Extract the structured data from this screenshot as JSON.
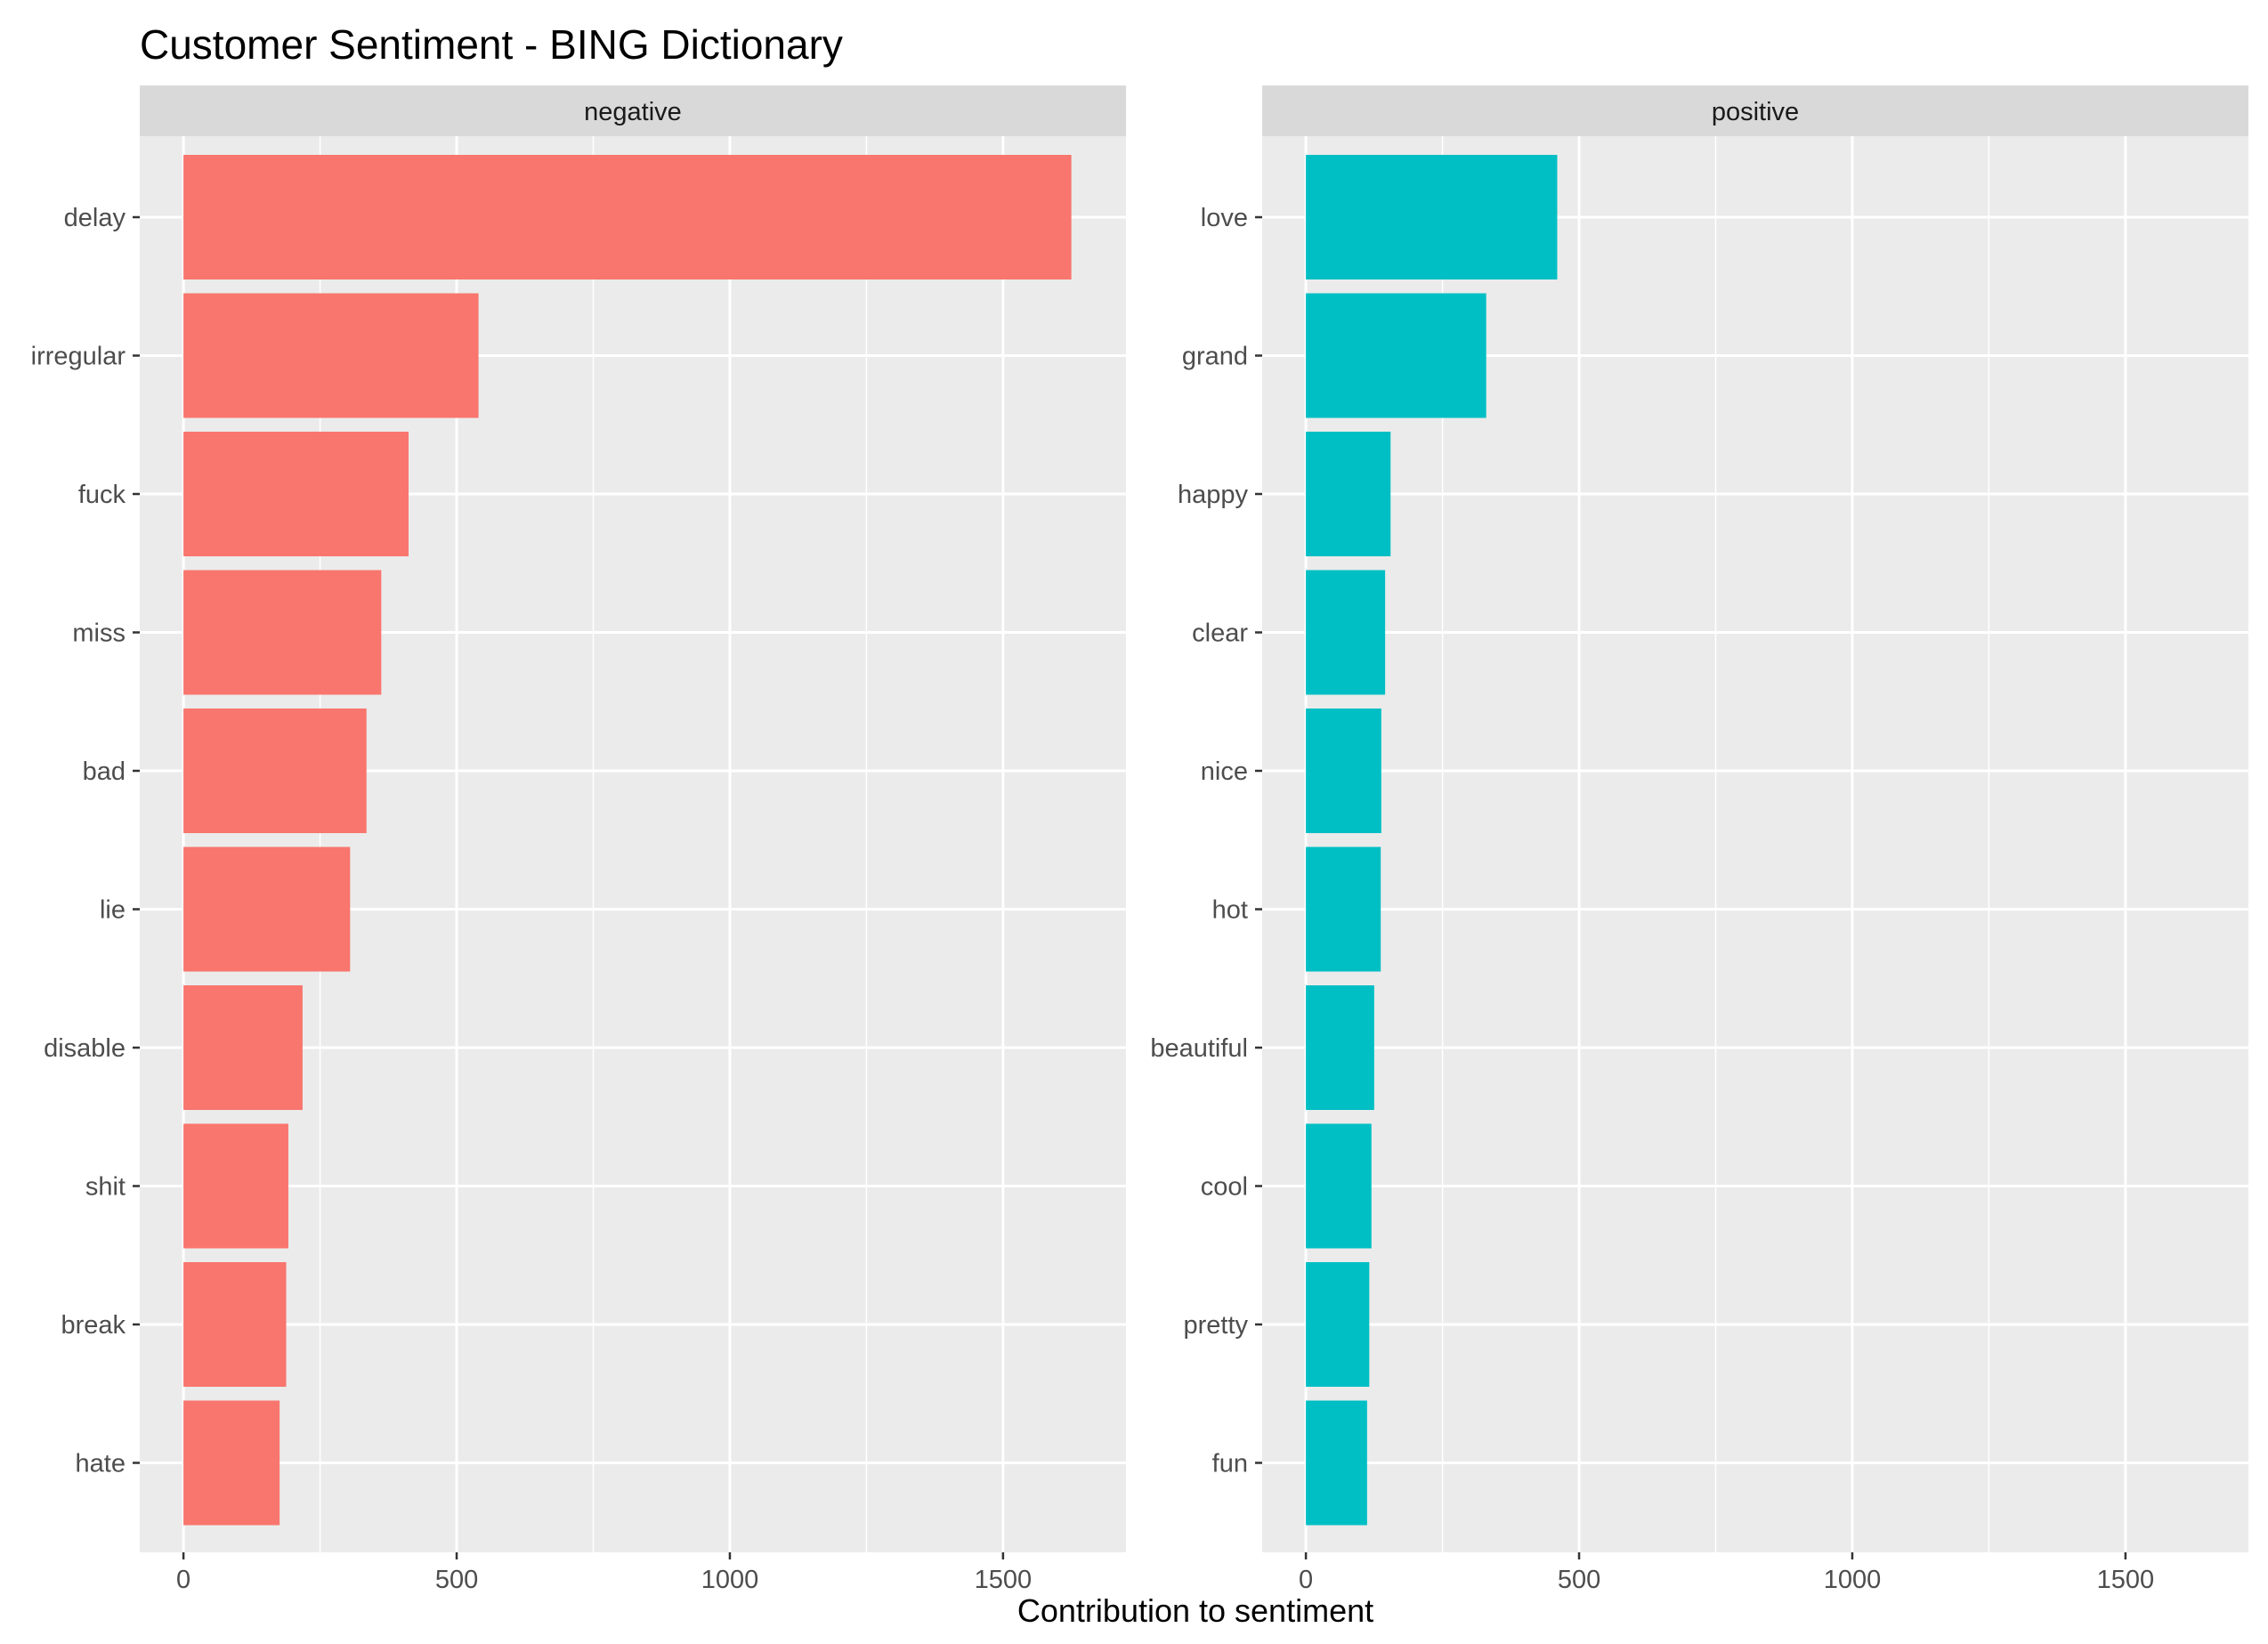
{
  "chart_data": {
    "type": "bar",
    "orientation": "horizontal",
    "title": "Customer Sentiment - BING Dictionary",
    "xlabel": "Contribution to sentiment",
    "ylabel": "",
    "xlim": [
      -80,
      1725
    ],
    "xticks": [
      0,
      500,
      1000,
      1500
    ],
    "xtick_labels": [
      "0",
      "500",
      "1000",
      "1500"
    ],
    "grid": true,
    "legend": "none",
    "facets": [
      {
        "strip_label": "negative",
        "color": "#F8766D",
        "categories": [
          "delay",
          "irregular",
          "fuck",
          "miss",
          "bad",
          "lie",
          "disable",
          "shit",
          "break",
          "hate"
        ],
        "values": [
          1625,
          540,
          412,
          362,
          335,
          305,
          218,
          192,
          188,
          176
        ]
      },
      {
        "strip_label": "positive",
        "color": "#00BFC4",
        "categories": [
          "love",
          "grand",
          "happy",
          "clear",
          "nice",
          "hot",
          "beautiful",
          "cool",
          "pretty",
          "fun"
        ],
        "values": [
          460,
          330,
          155,
          145,
          138,
          137,
          125,
          120,
          116,
          112
        ]
      }
    ]
  },
  "colors": {
    "panel_background": "#EBEBEB",
    "strip_background": "#D9D9D9",
    "grid_major": "#FFFFFF",
    "tick_color": "#333333"
  }
}
